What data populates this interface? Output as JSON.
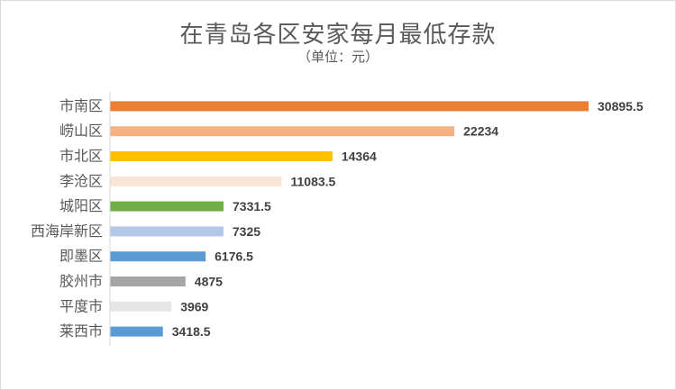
{
  "chart_data": {
    "type": "bar",
    "orientation": "horizontal",
    "title": "在青岛各区安家每月最低存款",
    "subtitle": "（单位：元）",
    "categories": [
      "市南区",
      "崂山区",
      "市北区",
      "李沧区",
      "城阳区",
      "西海岸新区",
      "即墨区",
      "胶州市",
      "平度市",
      "莱西市"
    ],
    "values": [
      30895.5,
      22234,
      14364,
      11083.5,
      7331.5,
      7325,
      6176.5,
      4875,
      3969,
      3418.5
    ],
    "value_labels": [
      "30895.5",
      "22234",
      "14364",
      "11083.5",
      "7331.5",
      "7325",
      "6176.5",
      "4875",
      "3969",
      "3418.5"
    ],
    "colors": [
      "#ed7d31",
      "#f4b183",
      "#ffc000",
      "#fbe5d6",
      "#70ad47",
      "#b4c7e7",
      "#5b9bd5",
      "#a5a5a5",
      "#e7e6e6",
      "#5b9bd5"
    ],
    "xlim": [
      0,
      32000
    ],
    "grid": false,
    "legend": "none"
  }
}
